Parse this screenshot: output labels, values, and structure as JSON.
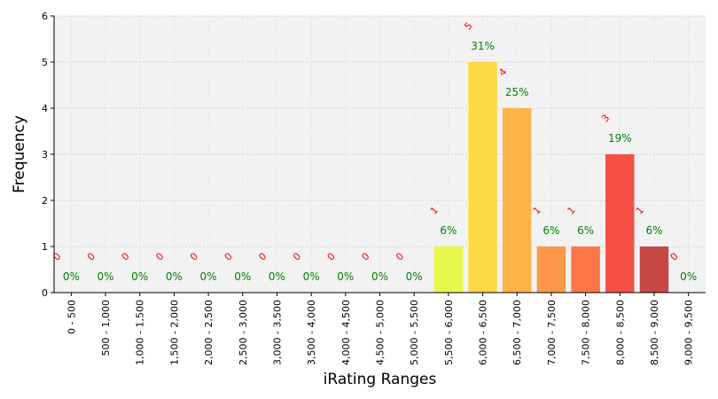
{
  "chart_data": {
    "type": "bar",
    "xlabel": "iRating Ranges",
    "ylabel": "Frequency",
    "ylim": [
      0,
      6
    ],
    "yticks": [
      0,
      1,
      2,
      3,
      4,
      5,
      6
    ],
    "grid": true,
    "categories": [
      "0 - 500",
      "500 - 1,000",
      "1,000 - 1,500",
      "1,500 - 2,000",
      "2,000 - 2,500",
      "2,500 - 3,000",
      "3,000 - 3,500",
      "3,500 - 4,000",
      "4,000 - 4,500",
      "4,500 - 5,000",
      "5,000 - 5,500",
      "5,500 - 6,000",
      "6,000 - 6,500",
      "6,500 - 7,000",
      "7,000 - 7,500",
      "7,500 - 8,000",
      "8,000 - 8,500",
      "8,500 - 9,000",
      "9,000 - 9,500"
    ],
    "values": [
      0,
      0,
      0,
      0,
      0,
      0,
      0,
      0,
      0,
      0,
      0,
      1,
      5,
      4,
      1,
      1,
      3,
      1,
      0
    ],
    "count_labels": [
      "0",
      "0",
      "0",
      "0",
      "0",
      "0",
      "0",
      "0",
      "0",
      "0",
      "0",
      "1",
      "5",
      "4",
      "1",
      "1",
      "3",
      "1",
      "0"
    ],
    "percent_labels": [
      "0%",
      "0%",
      "0%",
      "0%",
      "0%",
      "0%",
      "0%",
      "0%",
      "0%",
      "0%",
      "0%",
      "6%",
      "31%",
      "25%",
      "6%",
      "6%",
      "19%",
      "6%",
      "0%"
    ],
    "colors": [
      "#d9d9d9",
      "#d9d9d9",
      "#d9d9d9",
      "#d9d9d9",
      "#d9d9d9",
      "#d9d9d9",
      "#d9d9d9",
      "#d9d9d9",
      "#d9d9d9",
      "#d9d9d9",
      "#d9d9d9",
      "#e8f84a",
      "#fcd844",
      "#fcb44a",
      "#fc964a",
      "#fc7648",
      "#f64f46",
      "#c84846",
      "#d9d9d9"
    ],
    "plot_background": "#f2f2f2",
    "count_label_color": "#ff0000",
    "percent_label_color": "#008000"
  }
}
